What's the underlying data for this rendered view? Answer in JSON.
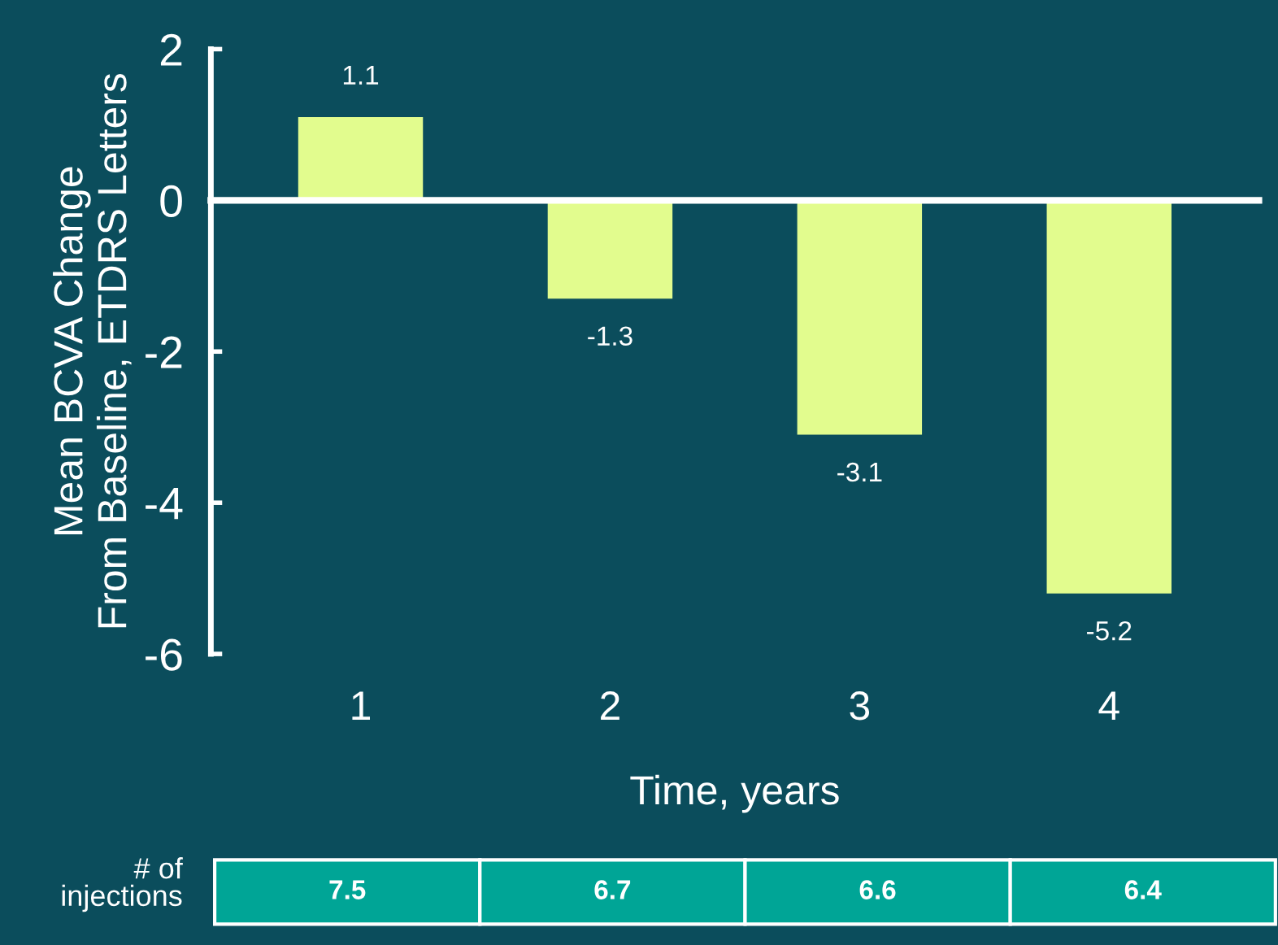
{
  "chart_data": {
    "type": "bar",
    "categories": [
      "1",
      "2",
      "3",
      "4"
    ],
    "values": [
      1.1,
      -1.3,
      -3.1,
      -5.2
    ],
    "color": "#e2fc8e",
    "data_labels": true,
    "ylim": [
      -6,
      2
    ],
    "yticks": [
      -6,
      -4,
      -2,
      0,
      2
    ],
    "xlabel": "Time, years",
    "ylabel": "Mean BCVA Change\nFrom Baseline, ETDRS Letters",
    "legend": false,
    "annotations": [
      "# of\ninjections",
      "7.5",
      "6.7",
      "6.6",
      "6.4"
    ]
  }
}
